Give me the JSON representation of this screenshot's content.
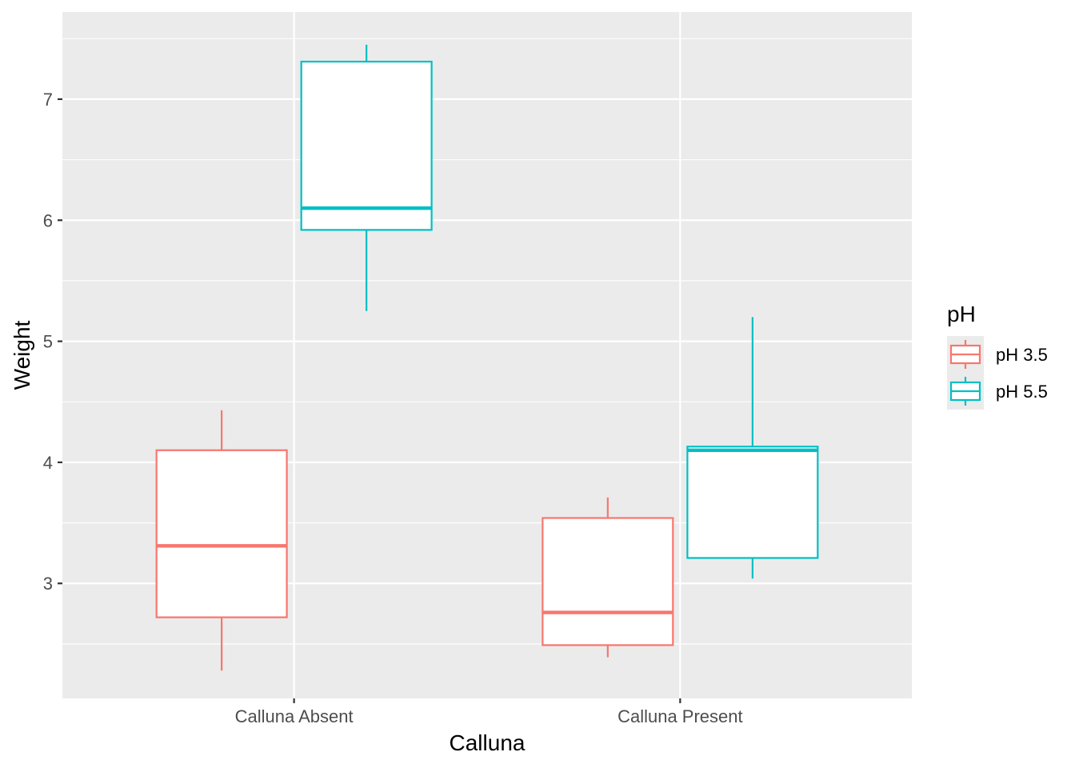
{
  "chart_data": {
    "type": "boxplot",
    "title": "",
    "xlabel": "Calluna",
    "ylabel": "Weight",
    "categories": [
      "Calluna Absent",
      "Calluna Present"
    ],
    "ylim": [
      2.05,
      7.72
    ],
    "yticks": [
      3,
      4,
      5,
      6,
      7
    ],
    "grid": true,
    "legend": {
      "title": "pH",
      "position": "right"
    },
    "series": [
      {
        "name": "pH 3.5",
        "color": "#F8766D",
        "boxes": [
          {
            "category": "Calluna Absent",
            "min": 2.28,
            "q1": 2.72,
            "median": 3.31,
            "q3": 4.1,
            "max": 4.43
          },
          {
            "category": "Calluna Present",
            "min": 2.39,
            "q1": 2.49,
            "median": 2.76,
            "q3": 3.54,
            "max": 3.71
          }
        ]
      },
      {
        "name": "pH 5.5",
        "color": "#00BFC4",
        "boxes": [
          {
            "category": "Calluna Absent",
            "min": 5.25,
            "q1": 5.92,
            "median": 6.1,
            "q3": 7.31,
            "max": 7.45
          },
          {
            "category": "Calluna Present",
            "min": 3.04,
            "q1": 3.21,
            "median": 4.1,
            "q3": 4.13,
            "max": 5.2
          }
        ]
      }
    ]
  }
}
